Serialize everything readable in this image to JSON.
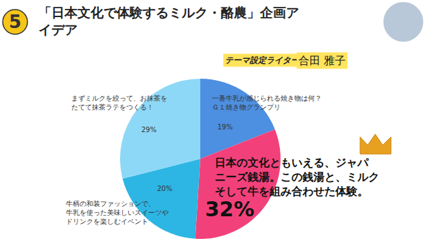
{
  "chart_data": {
    "type": "pie",
    "title": "「日本文化で体験するミルク・酪農」企画アイデア",
    "categories": [
      "一番牛乳が感じられる焼き物は何？Ｇ１焼き物グランプリ",
      "日本の文化ともいえる、ジャパニーズ銭湯。この銭湯と、ミルクそして牛を組み合わせた体験。",
      "牛柄の和装ファッションで、牛乳を使った美味しいスイーツやドリンクを楽しむイベント",
      "まずミルクを絞って、お抹茶をたてて抹茶ラテをつくる！"
    ],
    "values": [
      19,
      32,
      20,
      29
    ],
    "value_labels": [
      "19%",
      "32%",
      "20%",
      "29%"
    ],
    "colors": [
      "#4d8fe0",
      "#f2417a",
      "#2db6e3",
      "#8ed8f7"
    ],
    "data_labels": true,
    "annotations": {
      "badge": "5",
      "writer_role": "テーマ設定ライター",
      "writer_name": "合田 雅子"
    }
  }
}
